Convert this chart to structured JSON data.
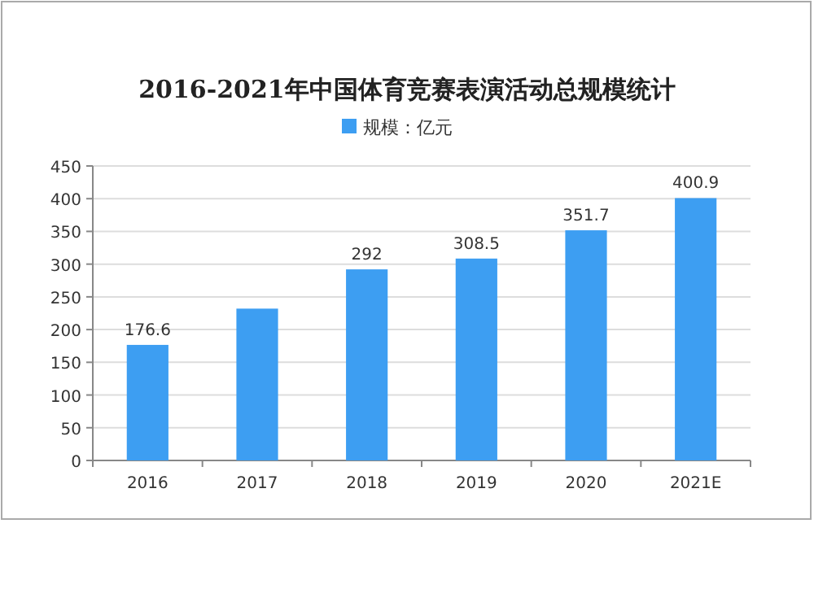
{
  "chart_data": {
    "type": "bar",
    "title": "2016-2021年中国体育竞赛表演活动总规模统计",
    "categories": [
      "2016",
      "2017",
      "2018",
      "2019",
      "2020",
      "2021E"
    ],
    "series": [
      {
        "name": "规模：亿元",
        "color": "#3d9ef2",
        "values": [
          176.6,
          232,
          292,
          308.5,
          351.7,
          400.9
        ],
        "value_labels": [
          "176.6",
          null,
          "292",
          "308.5",
          "351.7",
          "400.9"
        ]
      }
    ],
    "ylim": [
      0,
      450
    ],
    "yticks": [
      0,
      50,
      100,
      150,
      200,
      250,
      300,
      350,
      400,
      450
    ],
    "grid": "y",
    "legend": "top"
  }
}
